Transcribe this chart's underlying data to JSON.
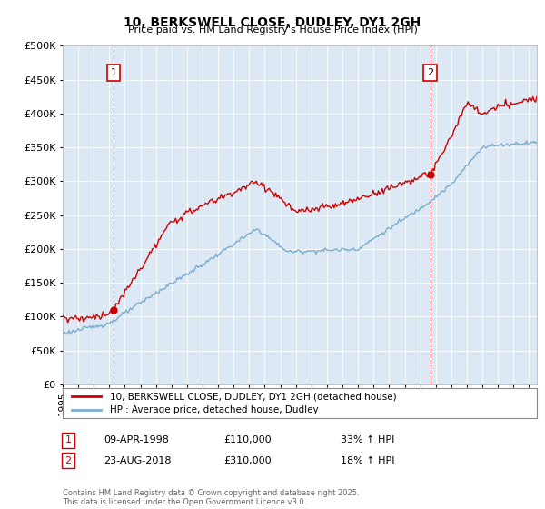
{
  "title": "10, BERKSWELL CLOSE, DUDLEY, DY1 2GH",
  "subtitle": "Price paid vs. HM Land Registry's House Price Index (HPI)",
  "ylim": [
    0,
    500000
  ],
  "yticks": [
    0,
    50000,
    100000,
    150000,
    200000,
    250000,
    300000,
    350000,
    400000,
    450000,
    500000
  ],
  "xlim_start": 1995.0,
  "xlim_end": 2025.5,
  "sale1": {
    "date_num": 1998.27,
    "price": 110000,
    "label": "1"
  },
  "sale2": {
    "date_num": 2018.65,
    "price": 310000,
    "label": "2"
  },
  "red_color": "#cc0000",
  "blue_color": "#7aadcf",
  "sale1_vline_color": "#888888",
  "sale2_vline_color": "#cc0000",
  "legend_label_red": "10, BERKSWELL CLOSE, DUDLEY, DY1 2GH (detached house)",
  "legend_label_blue": "HPI: Average price, detached house, Dudley",
  "table_row1": [
    "1",
    "09-APR-1998",
    "£110,000",
    "33% ↑ HPI"
  ],
  "table_row2": [
    "2",
    "23-AUG-2018",
    "£310,000",
    "18% ↑ HPI"
  ],
  "footnote": "Contains HM Land Registry data © Crown copyright and database right 2025.\nThis data is licensed under the Open Government Licence v3.0.",
  "background_color": "#ffffff",
  "plot_bg_color": "#dce9f5",
  "grid_color": "#ffffff"
}
